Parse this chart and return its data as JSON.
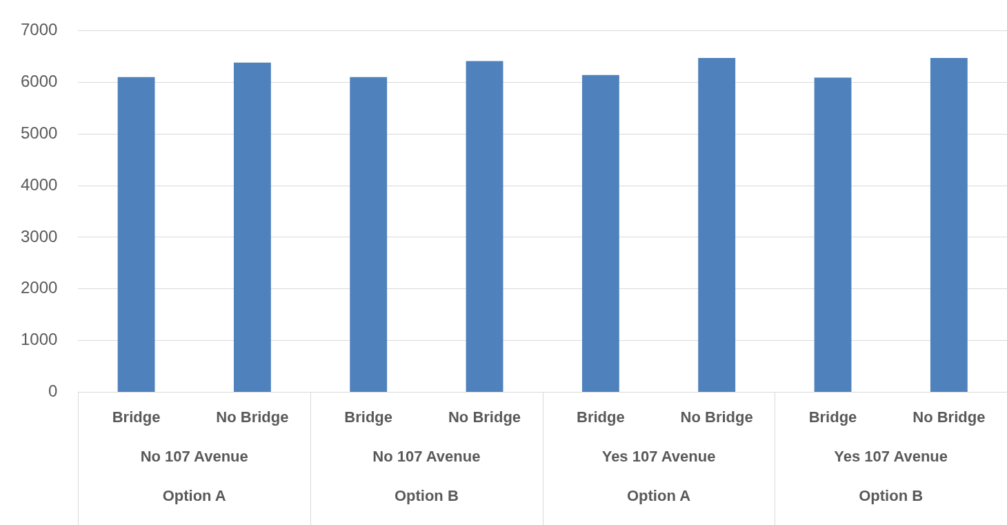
{
  "chart_data": {
    "type": "bar",
    "categories": [
      "Bridge",
      "No Bridge",
      "Bridge",
      "No Bridge",
      "Bridge",
      "No Bridge",
      "Bridge",
      "No Bridge"
    ],
    "values": [
      6100,
      6380,
      6100,
      6410,
      6140,
      6470,
      6090,
      6470
    ],
    "color": "#4f81bd",
    "ylim": [
      0,
      7000
    ],
    "yticks": [
      0,
      1000,
      2000,
      3000,
      4000,
      5000,
      6000,
      7000
    ],
    "grid": "y",
    "legend": false,
    "annotations": [
      "No 107 Avenue",
      "No 107 Avenue",
      "Yes 107 Avenue",
      "Yes 107 Avenue",
      "Option A",
      "Option B",
      "Option A",
      "Option B"
    ]
  }
}
